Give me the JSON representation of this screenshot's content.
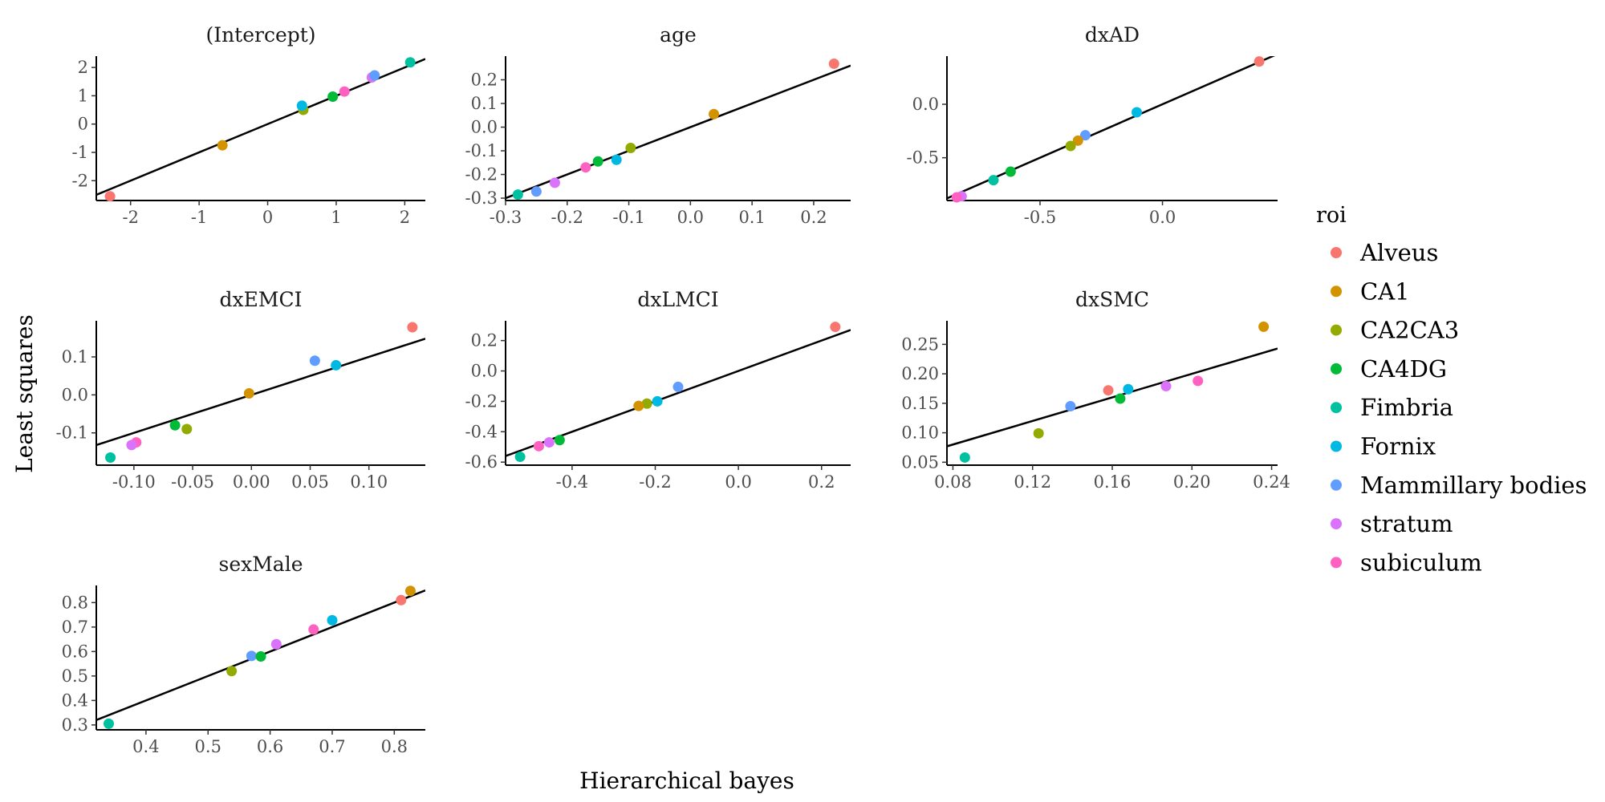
{
  "figure": {
    "xlabel": "Hierarchical bayes",
    "ylabel": "Least squares"
  },
  "legend": {
    "title": "roi",
    "items": [
      {
        "name": "Alveus",
        "color": "#F8766D"
      },
      {
        "name": "CA1",
        "color": "#D39200"
      },
      {
        "name": "CA2CA3",
        "color": "#93AA00"
      },
      {
        "name": "CA4DG",
        "color": "#00BA38"
      },
      {
        "name": "Fimbria",
        "color": "#00C19F"
      },
      {
        "name": "Fornix",
        "color": "#00B9E3"
      },
      {
        "name": "Mammillary bodies",
        "color": "#619CFF"
      },
      {
        "name": "stratum",
        "color": "#DB72FB"
      },
      {
        "name": "subiculum",
        "color": "#FF61C3"
      }
    ]
  },
  "chart_data": [
    {
      "type": "scatter",
      "title": "(Intercept)",
      "xlim": [
        -2.5,
        2.3
      ],
      "ylim": [
        -2.7,
        2.4
      ],
      "xticks": [
        -2,
        -1,
        0,
        1,
        2
      ],
      "xtick_labels": [
        "-2",
        "-1",
        "0",
        "1",
        "2"
      ],
      "yticks": [
        -2,
        -1,
        0,
        1,
        2
      ],
      "ytick_labels": [
        "-2",
        "-1",
        "0",
        "1",
        "2"
      ],
      "line": {
        "slope": 1,
        "intercept": 0
      },
      "points": [
        {
          "roi": "Alveus",
          "x": -2.3,
          "y": -2.55
        },
        {
          "roi": "CA1",
          "x": -0.66,
          "y": -0.75
        },
        {
          "roi": "CA2CA3",
          "x": 0.52,
          "y": 0.5
        },
        {
          "roi": "Fornix",
          "x": 0.5,
          "y": 0.65
        },
        {
          "roi": "CA4DG",
          "x": 0.95,
          "y": 0.97
        },
        {
          "roi": "subiculum",
          "x": 1.12,
          "y": 1.15
        },
        {
          "roi": "stratum",
          "x": 1.52,
          "y": 1.65
        },
        {
          "roi": "Mammillary bodies",
          "x": 1.56,
          "y": 1.72
        },
        {
          "roi": "Fimbria",
          "x": 2.08,
          "y": 2.18
        }
      ]
    },
    {
      "type": "scatter",
      "title": "age",
      "xlim": [
        -0.3,
        0.26
      ],
      "ylim": [
        -0.31,
        0.3
      ],
      "xticks": [
        -0.3,
        -0.2,
        -0.1,
        0.0,
        0.1,
        0.2
      ],
      "xtick_labels": [
        "-0.3",
        "-0.2",
        "-0.1",
        "0.0",
        "0.1",
        "0.2"
      ],
      "yticks": [
        -0.3,
        -0.2,
        -0.1,
        0.0,
        0.1,
        0.2
      ],
      "ytick_labels": [
        "-0.3",
        "-0.2",
        "-0.1",
        "0.0",
        "0.1",
        "0.2"
      ],
      "line": {
        "slope": 1,
        "intercept": 0
      },
      "points": [
        {
          "roi": "Alveus",
          "x": 0.233,
          "y": 0.268
        },
        {
          "roi": "CA1",
          "x": 0.038,
          "y": 0.055
        },
        {
          "roi": "CA2CA3",
          "x": -0.097,
          "y": -0.088
        },
        {
          "roi": "Fornix",
          "x": -0.12,
          "y": -0.138
        },
        {
          "roi": "CA4DG",
          "x": -0.15,
          "y": -0.145
        },
        {
          "roi": "subiculum",
          "x": -0.17,
          "y": -0.17
        },
        {
          "roi": "stratum",
          "x": -0.22,
          "y": -0.235
        },
        {
          "roi": "Mammillary bodies",
          "x": -0.25,
          "y": -0.272
        },
        {
          "roi": "Fimbria",
          "x": -0.28,
          "y": -0.285
        }
      ]
    },
    {
      "type": "scatter",
      "title": "dxAD",
      "xlim": [
        -0.88,
        0.47
      ],
      "ylim": [
        -0.9,
        0.45
      ],
      "xticks": [
        -0.5,
        0.0
      ],
      "xtick_labels": [
        "-0.5",
        "0.0"
      ],
      "yticks": [
        -0.5,
        0.0
      ],
      "ytick_labels": [
        "-0.5",
        "0.0"
      ],
      "line": {
        "slope": 1,
        "intercept": 0
      },
      "points": [
        {
          "roi": "Alveus",
          "x": 0.395,
          "y": 0.4
        },
        {
          "roi": "Fornix",
          "x": -0.105,
          "y": -0.075
        },
        {
          "roi": "Mammillary bodies",
          "x": -0.315,
          "y": -0.29
        },
        {
          "roi": "CA1",
          "x": -0.345,
          "y": -0.34
        },
        {
          "roi": "CA2CA3",
          "x": -0.375,
          "y": -0.39
        },
        {
          "roi": "CA4DG",
          "x": -0.62,
          "y": -0.63
        },
        {
          "roi": "Fimbria",
          "x": -0.69,
          "y": -0.71
        },
        {
          "roi": "stratum",
          "x": -0.82,
          "y": -0.86
        },
        {
          "roi": "subiculum",
          "x": -0.84,
          "y": -0.87
        }
      ]
    },
    {
      "type": "scatter",
      "title": "dxEMCI",
      "xlim": [
        -0.132,
        0.148
      ],
      "ylim": [
        -0.185,
        0.195
      ],
      "xticks": [
        -0.1,
        -0.05,
        0.0,
        0.05,
        0.1
      ],
      "xtick_labels": [
        "-0.10",
        "-0.05",
        "0.00",
        "0.05",
        "0.10"
      ],
      "yticks": [
        -0.1,
        0.0,
        0.1
      ],
      "ytick_labels": [
        "-0.1",
        "0.0",
        "0.1"
      ],
      "line": {
        "slope": 1,
        "intercept": 0
      },
      "points": [
        {
          "roi": "Alveus",
          "x": 0.137,
          "y": 0.178
        },
        {
          "roi": "Mammillary bodies",
          "x": 0.054,
          "y": 0.09
        },
        {
          "roi": "Fornix",
          "x": 0.072,
          "y": 0.078
        },
        {
          "roi": "CA1",
          "x": -0.002,
          "y": 0.004
        },
        {
          "roi": "CA4DG",
          "x": -0.065,
          "y": -0.08
        },
        {
          "roi": "CA2CA3",
          "x": -0.055,
          "y": -0.09
        },
        {
          "roi": "subiculum",
          "x": -0.098,
          "y": -0.125
        },
        {
          "roi": "stratum",
          "x": -0.102,
          "y": -0.132
        },
        {
          "roi": "Fimbria",
          "x": -0.12,
          "y": -0.165
        }
      ]
    },
    {
      "type": "scatter",
      "title": "dxLMCI",
      "xlim": [
        -0.56,
        0.27
      ],
      "ylim": [
        -0.62,
        0.33
      ],
      "xticks": [
        -0.4,
        -0.2,
        0.0,
        0.2
      ],
      "xtick_labels": [
        "-0.4",
        "-0.2",
        "0.0",
        "0.2"
      ],
      "yticks": [
        -0.6,
        -0.4,
        -0.2,
        0.0,
        0.2
      ],
      "ytick_labels": [
        "-0.6",
        "-0.4",
        "-0.2",
        "0.0",
        "0.2"
      ],
      "line": {
        "slope": 1,
        "intercept": 0
      },
      "points": [
        {
          "roi": "Alveus",
          "x": 0.233,
          "y": 0.29
        },
        {
          "roi": "Mammillary bodies",
          "x": -0.145,
          "y": -0.105
        },
        {
          "roi": "Fornix",
          "x": -0.195,
          "y": -0.2
        },
        {
          "roi": "CA2CA3",
          "x": -0.22,
          "y": -0.215
        },
        {
          "roi": "CA1",
          "x": -0.24,
          "y": -0.23
        },
        {
          "roi": "CA4DG",
          "x": -0.43,
          "y": -0.455
        },
        {
          "roi": "stratum",
          "x": -0.455,
          "y": -0.47
        },
        {
          "roi": "subiculum",
          "x": -0.48,
          "y": -0.495
        },
        {
          "roi": "Fimbria",
          "x": -0.525,
          "y": -0.565
        }
      ]
    },
    {
      "type": "scatter",
      "title": "dxSMC",
      "xlim": [
        0.077,
        0.243
      ],
      "ylim": [
        0.045,
        0.29
      ],
      "xticks": [
        0.08,
        0.12,
        0.16,
        0.2,
        0.24
      ],
      "xtick_labels": [
        "0.08",
        "0.12",
        "0.16",
        "0.20",
        "0.24"
      ],
      "yticks": [
        0.05,
        0.1,
        0.15,
        0.2,
        0.25
      ],
      "ytick_labels": [
        "0.05",
        "0.10",
        "0.15",
        "0.20",
        "0.25"
      ],
      "line": {
        "slope": 1,
        "intercept": 0
      },
      "points": [
        {
          "roi": "CA1",
          "x": 0.236,
          "y": 0.28
        },
        {
          "roi": "subiculum",
          "x": 0.203,
          "y": 0.188
        },
        {
          "roi": "stratum",
          "x": 0.187,
          "y": 0.179
        },
        {
          "roi": "Fornix",
          "x": 0.168,
          "y": 0.174
        },
        {
          "roi": "Alveus",
          "x": 0.158,
          "y": 0.172
        },
        {
          "roi": "CA4DG",
          "x": 0.164,
          "y": 0.158
        },
        {
          "roi": "Mammillary bodies",
          "x": 0.139,
          "y": 0.145
        },
        {
          "roi": "CA2CA3",
          "x": 0.123,
          "y": 0.099
        },
        {
          "roi": "Fimbria",
          "x": 0.086,
          "y": 0.058
        }
      ]
    },
    {
      "type": "scatter",
      "title": "sexMale",
      "xlim": [
        0.32,
        0.85
      ],
      "ylim": [
        0.28,
        0.87
      ],
      "xticks": [
        0.4,
        0.5,
        0.6,
        0.7,
        0.8
      ],
      "xtick_labels": [
        "0.4",
        "0.5",
        "0.6",
        "0.7",
        "0.8"
      ],
      "yticks": [
        0.3,
        0.4,
        0.5,
        0.6,
        0.7,
        0.8
      ],
      "ytick_labels": [
        "0.3",
        "0.4",
        "0.5",
        "0.6",
        "0.7",
        "0.8"
      ],
      "line": {
        "slope": 1,
        "intercept": 0
      },
      "points": [
        {
          "roi": "CA1",
          "x": 0.826,
          "y": 0.848
        },
        {
          "roi": "Alveus",
          "x": 0.811,
          "y": 0.81
        },
        {
          "roi": "Fornix",
          "x": 0.7,
          "y": 0.728
        },
        {
          "roi": "subiculum",
          "x": 0.67,
          "y": 0.69
        },
        {
          "roi": "stratum",
          "x": 0.61,
          "y": 0.63
        },
        {
          "roi": "Mammillary bodies",
          "x": 0.57,
          "y": 0.582
        },
        {
          "roi": "CA4DG",
          "x": 0.585,
          "y": 0.58
        },
        {
          "roi": "CA2CA3",
          "x": 0.538,
          "y": 0.52
        },
        {
          "roi": "Fimbria",
          "x": 0.34,
          "y": 0.305
        }
      ]
    }
  ]
}
